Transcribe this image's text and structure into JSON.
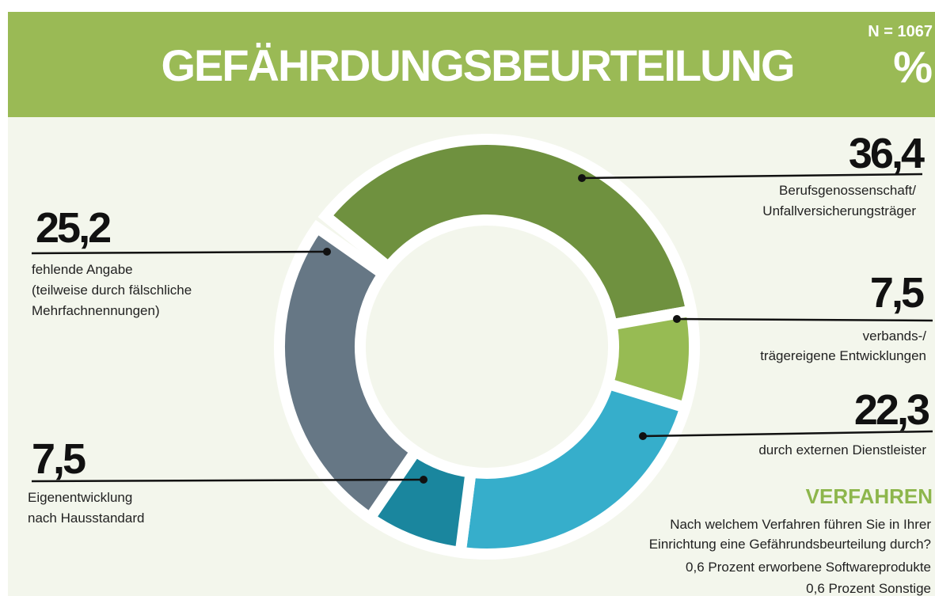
{
  "chart_data": {
    "type": "donut",
    "title": "GEFÄHRDUNGSBEURTEILUNG",
    "sample": "N = 1067",
    "unit": "%",
    "categories": [
      [
        "Berufsgenossenschaft/",
        "Unfallversicherungsträger"
      ],
      [
        "verbands-/",
        "trägereigene Entwicklungen"
      ],
      [
        "durch externen Dienstleister"
      ],
      [
        "Eigenentwicklung",
        "nach Hausstandard"
      ],
      [
        "fehlende Angabe",
        "(teilweise durch fälschliche",
        "Mehrfachnennungen)"
      ]
    ],
    "values": [
      36.4,
      7.5,
      22.3,
      7.5,
      25.2
    ],
    "value_labels": [
      "36,4",
      "7,5",
      "22,3",
      "7,5",
      "25,2"
    ],
    "colors": [
      "#6f913f",
      "#97bb53",
      "#36aecb",
      "#1a869e",
      "#667785"
    ],
    "note_title": "VERFAHREN",
    "notes": [
      "Nach welchem Verfahren führen Sie in Ihrer",
      "Einrichtung eine Gefährundsbeurteilung durch?",
      "0,6 Prozent erworbene Softwareprodukte",
      "0,6 Prozent Sonstige"
    ]
  }
}
